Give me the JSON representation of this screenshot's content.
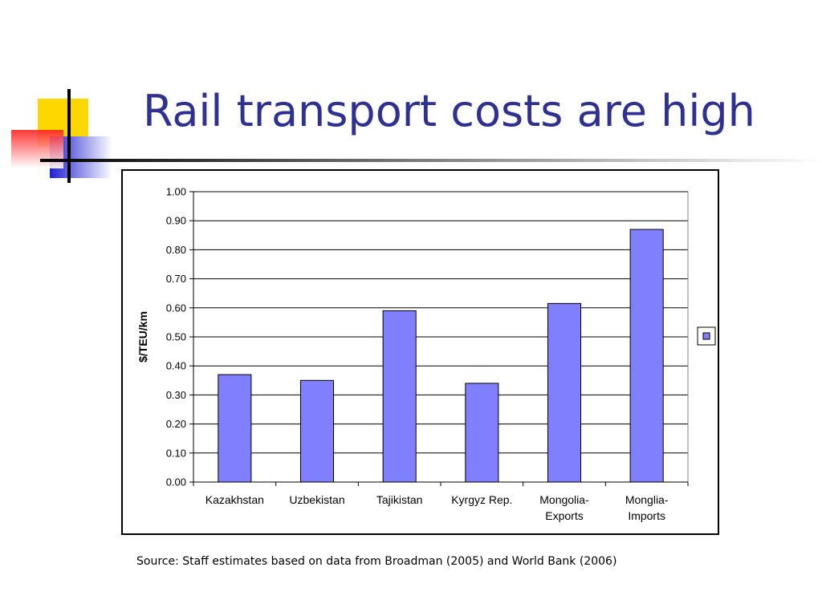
{
  "slide": {
    "title": "Rail transport costs are high",
    "source": "Source: Staff estimates based on data from Broadman (2005) and World Bank (2006)"
  },
  "chart_data": {
    "type": "bar",
    "categories": [
      [
        "Kazakhstan"
      ],
      [
        "Uzbekistan"
      ],
      [
        "Tajikistan"
      ],
      [
        "Kyrgyz Rep."
      ],
      [
        "Mongolia-",
        "Exports"
      ],
      [
        "Monglia-",
        "Imports"
      ]
    ],
    "values": [
      0.37,
      0.35,
      0.59,
      0.34,
      0.615,
      0.87
    ],
    "ylabel": "$/TEU/km",
    "ylim": [
      0,
      1.0
    ],
    "yticks": [
      "0.00",
      "0.10",
      "0.20",
      "0.30",
      "0.40",
      "0.50",
      "0.60",
      "0.70",
      "0.80",
      "0.90",
      "1.00"
    ],
    "grid": true,
    "legend": "right",
    "colors": {
      "bar": "#8080ff",
      "bar_stroke": "#000000",
      "grid": "#000000"
    }
  }
}
